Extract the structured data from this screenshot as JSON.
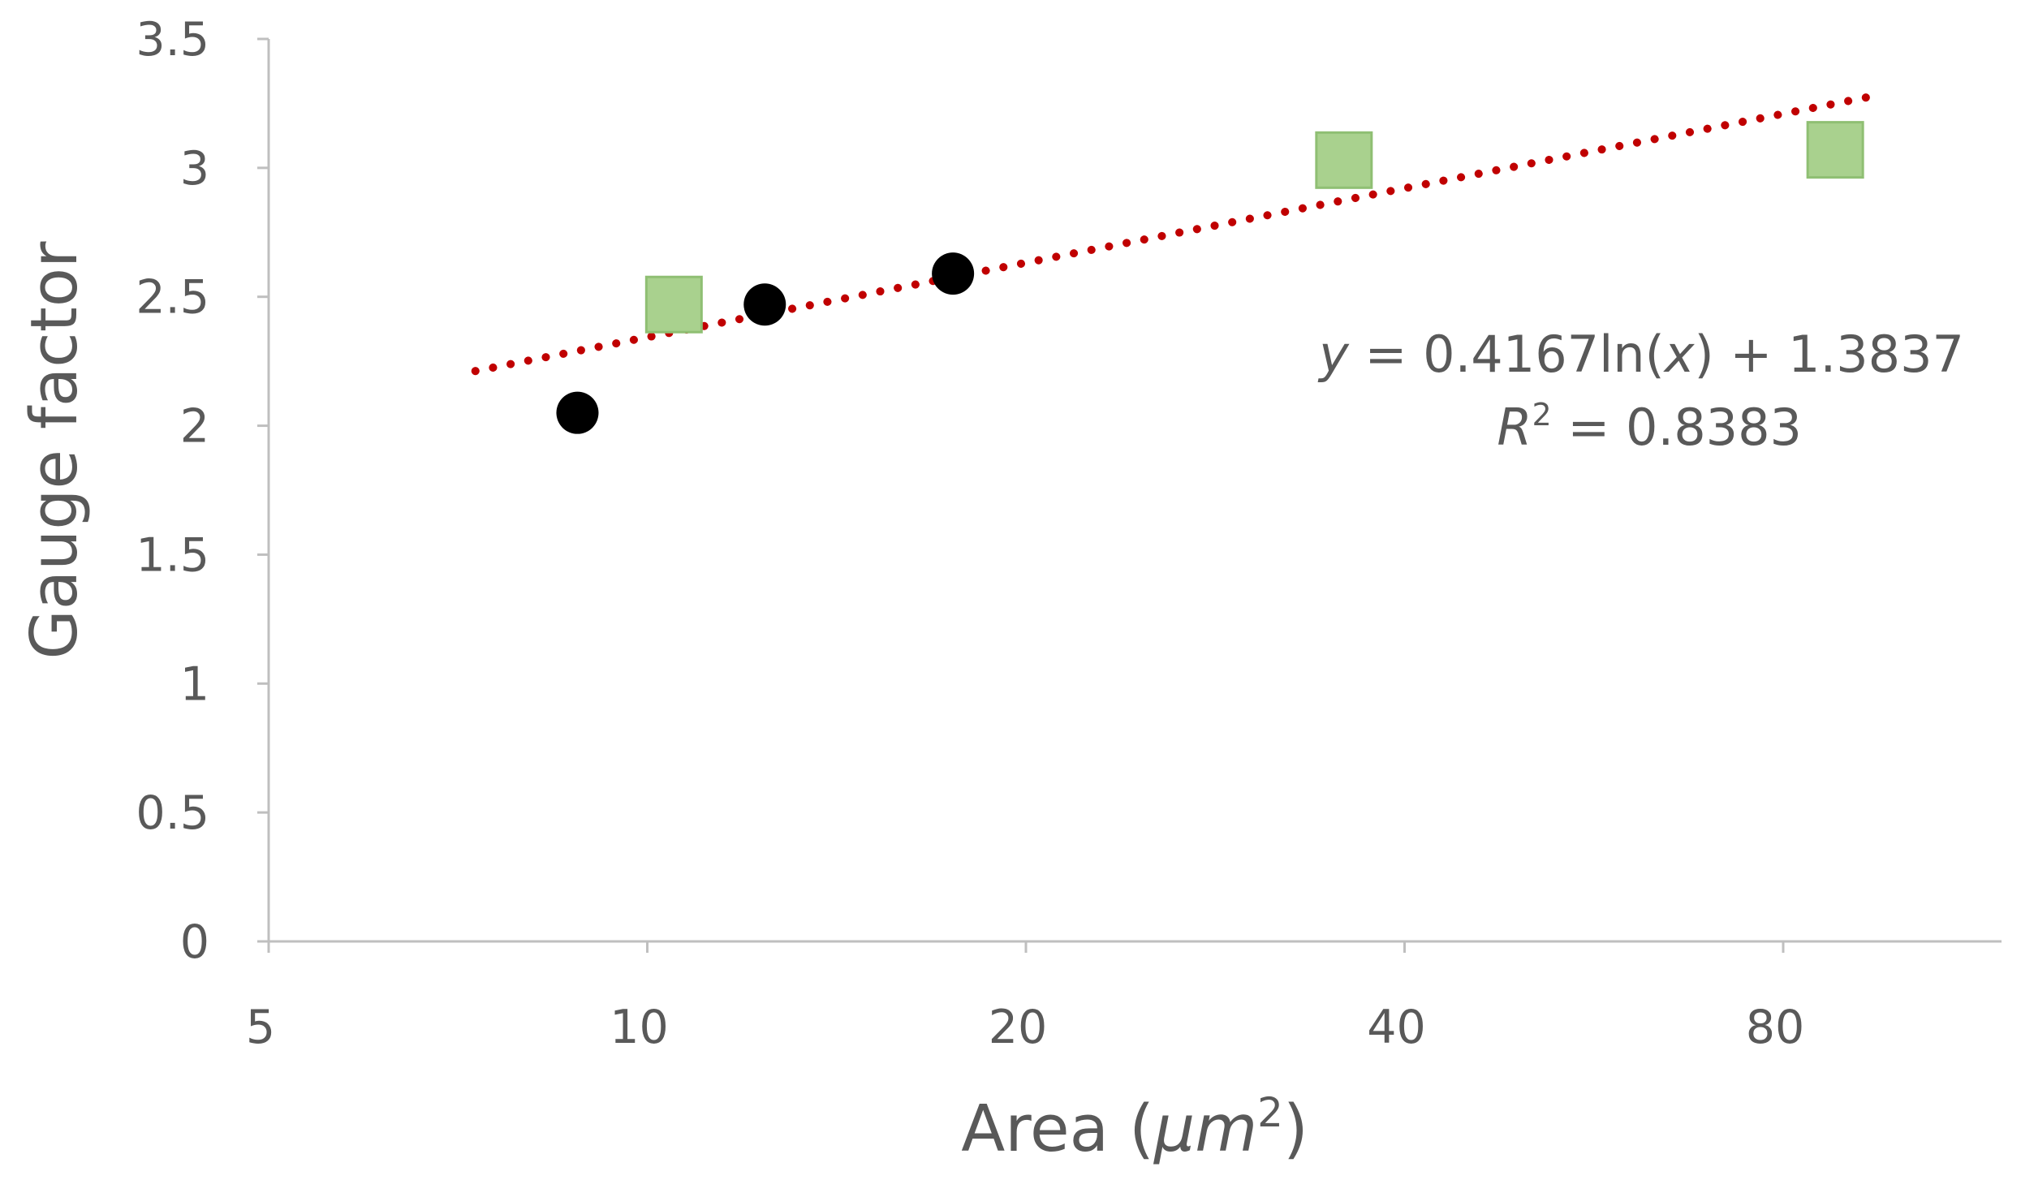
{
  "chart_data": {
    "type": "scatter",
    "title": "",
    "xlabel": "Area (",
    "xlabel_unit": "μm",
    "xlabel_sup": "2",
    "xlabel_close": ")",
    "ylabel": "Gauge factor",
    "x_scale": "log2",
    "xlim": [
      5,
      128
    ],
    "ylim": [
      0,
      3.5
    ],
    "x_ticks": [
      5,
      10,
      20,
      40,
      80
    ],
    "x_tick_labels": [
      "5",
      "10",
      "20",
      "40",
      "80"
    ],
    "y_ticks": [
      0,
      0.5,
      1,
      1.5,
      2,
      2.5,
      3,
      3.5
    ],
    "y_tick_labels": [
      "0",
      "0.5",
      "1",
      "1.5",
      "2",
      "2.5",
      "3",
      "3.5"
    ],
    "grid": false,
    "series": [
      {
        "marker": "circle",
        "color": "#000000",
        "x": [
          8.8,
          12.4,
          17.5
        ],
        "y": [
          2.05,
          2.47,
          2.59
        ]
      },
      {
        "marker": "square",
        "color": "#a9d18e",
        "edge_color": "#8fbf73",
        "x": [
          10.5,
          35.8,
          88.0
        ],
        "y": [
          2.47,
          3.03,
          3.07
        ]
      }
    ],
    "trendline": {
      "type": "logarithmic",
      "a": 0.4167,
      "b": 1.3837,
      "x_range": [
        7.3,
        94
      ],
      "color": "#c00000",
      "style": "dotted"
    },
    "annotation": {
      "eq_y": "y",
      "eq_body": " = 0.4167ln(",
      "eq_x": "x",
      "eq_tail": ") + 1.3837",
      "r2_r": "R",
      "r2_sup": "2",
      "r2_tail": " = 0.8383"
    },
    "colors": {
      "axis": "#bfbfbf",
      "text": "#595959"
    }
  }
}
